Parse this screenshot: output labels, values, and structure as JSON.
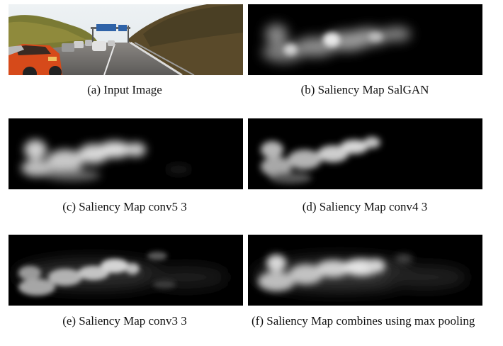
{
  "figure": {
    "panels": [
      {
        "id": "a",
        "caption": "(a) Input Image"
      },
      {
        "id": "b",
        "caption": "(b) Saliency Map SalGAN"
      },
      {
        "id": "c",
        "caption": "(c) Saliency Map conv5 3"
      },
      {
        "id": "d",
        "caption": "(d) Saliency Map conv4 3"
      },
      {
        "id": "e",
        "caption": "(e) Saliency Map conv3 3"
      },
      {
        "id": "f",
        "caption": "(f) Saliency Map combines using max pooling"
      }
    ],
    "colors": {
      "background": "#ffffff",
      "map_background": "#000000",
      "car": "#d64a1a",
      "road": "#6d6a66",
      "sky": "#e9eef1",
      "trees": "#6a6a2a",
      "sign": "#2f63a8"
    }
  }
}
